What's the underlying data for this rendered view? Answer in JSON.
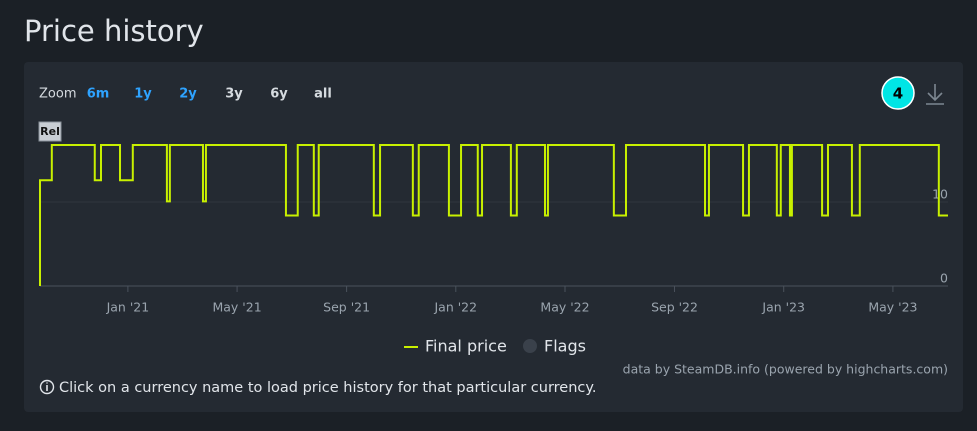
{
  "header": {
    "title": "Price history"
  },
  "zoom": {
    "label": "Zoom",
    "options": [
      "6m",
      "1y",
      "2y",
      "3y",
      "6y",
      "all"
    ]
  },
  "badge": "4",
  "chart_data": {
    "type": "step-line",
    "xlim": [
      2020.732,
      2023.501
    ],
    "xticks": [
      {
        "value": 2021.0,
        "label": "Jan '21"
      },
      {
        "value": 2021.333,
        "label": "May '21"
      },
      {
        "value": 2021.667,
        "label": "Sep '21"
      },
      {
        "value": 2022.0,
        "label": "Jan '22"
      },
      {
        "value": 2022.333,
        "label": "May '22"
      },
      {
        "value": 2022.667,
        "label": "Sep '22"
      },
      {
        "value": 2023.0,
        "label": "Jan '23"
      },
      {
        "value": 2023.333,
        "label": "May '23"
      }
    ],
    "ylim": [
      0,
      20
    ],
    "yticks": [
      0,
      10
    ],
    "grid": true,
    "flags": [
      {
        "x": 2020.732,
        "title": "Rel"
      }
    ],
    "series": [
      {
        "name": "Final price",
        "color": "#c8f000",
        "x": [
          2020.732,
          2020.732,
          2020.768,
          2020.899,
          2020.918,
          2020.976,
          2021.015,
          2021.119,
          2021.128,
          2021.229,
          2021.238,
          2021.482,
          2021.518,
          2021.567,
          2021.582,
          2021.75,
          2021.769,
          2021.869,
          2021.887,
          2021.979,
          2022.016,
          2022.067,
          2022.08,
          2022.168,
          2022.186,
          2022.272,
          2022.281,
          2022.482,
          2022.519,
          2022.76,
          2022.772,
          2022.876,
          2022.894,
          2022.979,
          2022.991,
          2023.019,
          2023.025,
          2023.117,
          2023.135,
          2023.208,
          2023.232,
          2023.473,
          2023.501
        ],
        "values": [
          0,
          12.59,
          16.79,
          12.59,
          16.79,
          12.59,
          16.79,
          10.07,
          16.79,
          10.07,
          16.79,
          8.39,
          16.79,
          8.39,
          16.79,
          8.39,
          16.79,
          8.39,
          16.79,
          8.39,
          16.79,
          8.39,
          16.79,
          8.39,
          16.79,
          8.39,
          16.79,
          8.39,
          16.79,
          8.39,
          16.79,
          8.39,
          16.79,
          8.39,
          16.79,
          8.39,
          16.79,
          8.39,
          16.79,
          8.39,
          16.79,
          8.39,
          8.39
        ]
      },
      {
        "name": "Flags",
        "color": "#3a414b"
      }
    ]
  },
  "credits": "data by SteamDB.info (powered by highcharts.com)",
  "note": "Click on a currency name to load price history for that particular currency."
}
